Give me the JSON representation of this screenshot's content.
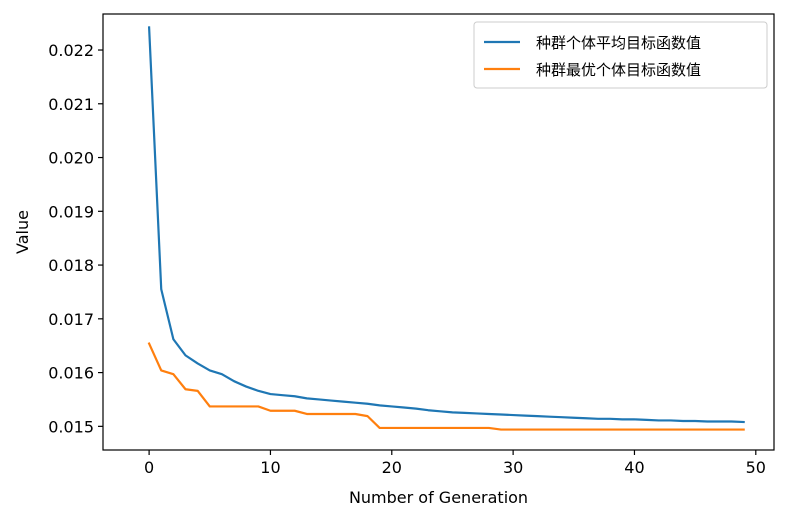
{
  "chart_data": {
    "type": "line",
    "xlabel": "Number of Generation",
    "ylabel": "Value",
    "xlim": [
      -3.8,
      51.5
    ],
    "ylim": [
      0.01456,
      0.02267
    ],
    "xticks": [
      0,
      10,
      20,
      30,
      40,
      50
    ],
    "yticks": [
      0.015,
      0.016,
      0.017,
      0.018,
      0.019,
      0.02,
      0.021,
      0.022
    ],
    "ytick_labels": [
      "0.015",
      "0.016",
      "0.017",
      "0.018",
      "0.019",
      "0.020",
      "0.021",
      "0.022"
    ],
    "grid": false,
    "legend_position": "top-right",
    "x": [
      0,
      1,
      2,
      3,
      4,
      5,
      6,
      7,
      8,
      9,
      10,
      11,
      12,
      13,
      14,
      15,
      16,
      17,
      18,
      19,
      20,
      21,
      22,
      23,
      24,
      25,
      26,
      27,
      28,
      29,
      30,
      31,
      32,
      33,
      34,
      35,
      36,
      37,
      38,
      39,
      40,
      41,
      42,
      43,
      44,
      45,
      46,
      47,
      48,
      49
    ],
    "series": [
      {
        "name": "种群个体平均目标函数值",
        "color": "#1f77b4",
        "values": [
          0.02242,
          0.01755,
          0.01662,
          0.01632,
          0.01617,
          0.01604,
          0.01597,
          0.01584,
          0.01574,
          0.01566,
          0.0156,
          0.01558,
          0.01556,
          0.01552,
          0.0155,
          0.01548,
          0.01546,
          0.01544,
          0.01542,
          0.01539,
          0.01537,
          0.01535,
          0.01533,
          0.0153,
          0.01528,
          0.01526,
          0.01525,
          0.01524,
          0.01523,
          0.01522,
          0.01521,
          0.0152,
          0.01519,
          0.01518,
          0.01517,
          0.01516,
          0.01515,
          0.01514,
          0.01514,
          0.01513,
          0.01513,
          0.01512,
          0.01511,
          0.01511,
          0.0151,
          0.0151,
          0.01509,
          0.01509,
          0.01509,
          0.01508
        ]
      },
      {
        "name": "种群最优个体目标函数值",
        "color": "#ff7f0e",
        "values": [
          0.01654,
          0.01604,
          0.01597,
          0.01569,
          0.01566,
          0.01537,
          0.01537,
          0.01537,
          0.01537,
          0.01537,
          0.01529,
          0.01529,
          0.01529,
          0.01523,
          0.01523,
          0.01523,
          0.01523,
          0.01523,
          0.01519,
          0.01497,
          0.01497,
          0.01497,
          0.01497,
          0.01497,
          0.01497,
          0.01497,
          0.01497,
          0.01497,
          0.01497,
          0.01494,
          0.01494,
          0.01494,
          0.01494,
          0.01494,
          0.01494,
          0.01494,
          0.01494,
          0.01494,
          0.01494,
          0.01494,
          0.01494,
          0.01494,
          0.01494,
          0.01494,
          0.01494,
          0.01494,
          0.01494,
          0.01494,
          0.01494,
          0.01494
        ]
      }
    ]
  }
}
